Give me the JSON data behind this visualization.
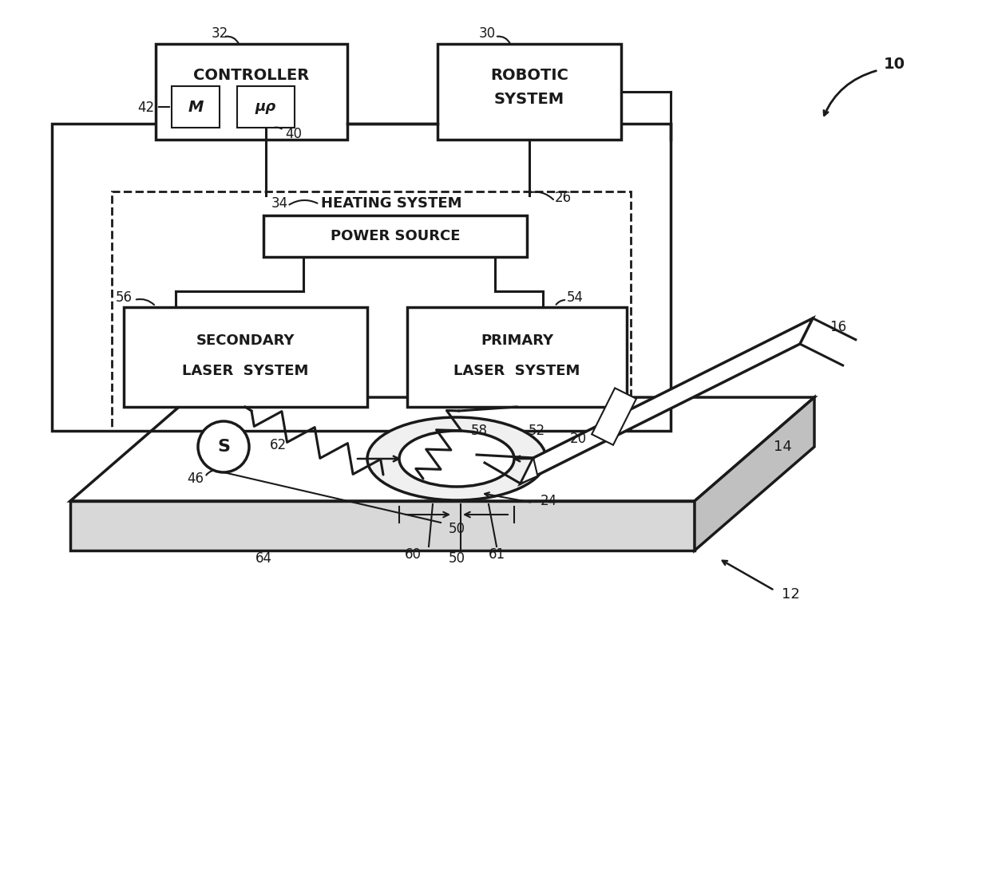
{
  "bg_color": "#ffffff",
  "line_color": "#1a1a1a",
  "figsize": [
    12.4,
    10.98
  ],
  "dpi": 100,
  "labels": {
    "controller": "CONTROLLER",
    "robotic": [
      "ROBOTIC",
      "SYSTEM"
    ],
    "heating": "HEATING SYSTEM",
    "power": "POWER SOURCE",
    "secondary": [
      "SECONDARY",
      "LASER  SYSTEM"
    ],
    "primary": [
      "PRIMARY",
      "LASER  SYSTEM"
    ],
    "M": "M",
    "mu": "μρ"
  },
  "numbers": {
    "n10": "10",
    "n12": "12",
    "n14": "14",
    "n16": "16",
    "n20": "20",
    "n24": "24",
    "n26": "26",
    "n30": "30",
    "n32": "32",
    "n34": "34",
    "n40": "40",
    "n42": "42",
    "n46": "46",
    "n50": "50",
    "n52": "52",
    "n54": "54",
    "n56": "56",
    "n58": "58",
    "n60": "60",
    "n61": "61",
    "n62": "62",
    "n64": "64",
    "S": "S"
  }
}
